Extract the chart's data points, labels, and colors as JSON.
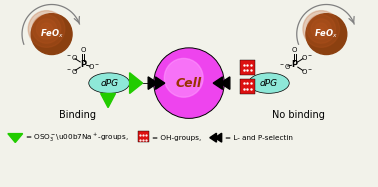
{
  "background_color": "#f2f2ea",
  "feox_color": "#8B4010",
  "feox_highlight": "#b85520",
  "feox_text": "FeO$_x$",
  "dpg_color": "#8ee8d8",
  "dpg_text": "dPG",
  "cell_color": "#ee44ee",
  "cell_inner": "#ff99ff",
  "cell_text": "Cell",
  "cell_text_color": "#993300",
  "green_color": "#22cc00",
  "red_color": "#dd1111",
  "black": "#000000",
  "binding_text": "Binding",
  "no_binding_text": "No binding",
  "legend_text1": "= OSO$_3^-$\\u00b7Na$^+$-groups,",
  "legend_text2": "= OH-groups,",
  "legend_text3": "= L- and P-selectin",
  "fig_width": 3.78,
  "fig_height": 1.87,
  "dpi": 100
}
